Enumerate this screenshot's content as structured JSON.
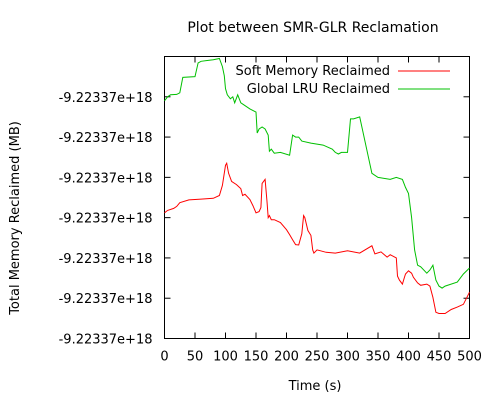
{
  "chart_data": {
    "type": "line",
    "title": "Plot between SMR-GLR Reclamation",
    "xlabel": "Time (s)",
    "ylabel": "Total Memory Reclaimed (MB)",
    "xlim": [
      0,
      500
    ],
    "ylim": [
      0,
      7
    ],
    "x_ticks": [
      "0",
      "50",
      "100",
      "150",
      "200",
      "250",
      "300",
      "350",
      "400",
      "450",
      "500"
    ],
    "y_ticks": [
      "-9.22337e+18",
      "-9.22337e+18",
      "-9.22337e+18",
      "-9.22337e+18",
      "-9.22337e+18",
      "-9.22337e+18",
      "-9.22337e+18"
    ],
    "y_tick_note": "All y tick labels print the same value; series y values below are read in tick-index units (0 = bottom tick, 6 = top tick).",
    "grid": false,
    "legend_position": "top-right",
    "series": [
      {
        "name": "Soft Memory Reclaimed",
        "color": "#ff0000",
        "x": [
          0,
          5,
          15,
          20,
          25,
          40,
          60,
          80,
          90,
          95,
          100,
          102,
          105,
          110,
          118,
          125,
          128,
          132,
          140,
          145,
          150,
          155,
          158,
          160,
          165,
          168,
          170,
          172,
          175,
          180,
          190,
          200,
          205,
          210,
          215,
          220,
          225,
          228,
          230,
          235,
          240,
          243,
          245,
          250,
          255,
          265,
          280,
          300,
          320,
          340,
          345,
          355,
          365,
          370,
          380,
          382,
          385,
          390,
          393,
          395,
          400,
          405,
          408,
          415,
          420,
          430,
          435,
          440,
          445,
          450,
          460,
          470,
          480,
          490,
          500
        ],
        "y": [
          3.12,
          3.18,
          3.23,
          3.28,
          3.37,
          3.44,
          3.46,
          3.48,
          3.55,
          3.8,
          4.3,
          4.35,
          4.1,
          3.9,
          3.82,
          3.72,
          3.55,
          3.58,
          3.45,
          3.3,
          3.12,
          3.15,
          3.25,
          3.85,
          3.95,
          3.4,
          3.0,
          3.05,
          2.95,
          2.95,
          2.88,
          2.7,
          2.58,
          2.45,
          2.33,
          2.32,
          2.6,
          3.05,
          3.0,
          2.68,
          2.56,
          2.2,
          2.12,
          2.2,
          2.18,
          2.14,
          2.12,
          2.18,
          2.12,
          2.3,
          2.1,
          2.15,
          2.02,
          2.08,
          2.0,
          1.55,
          1.45,
          1.35,
          1.5,
          1.6,
          1.68,
          1.62,
          1.52,
          1.38,
          1.32,
          1.35,
          1.3,
          1.02,
          0.65,
          0.62,
          0.62,
          0.72,
          0.78,
          0.85,
          1.15
        ]
      },
      {
        "name": "Global LRU Reclaimed",
        "color": "#00c000",
        "x": [
          0,
          5,
          10,
          20,
          25,
          30,
          50,
          55,
          60,
          70,
          80,
          90,
          95,
          98,
          100,
          103,
          108,
          112,
          115,
          120,
          125,
          130,
          140,
          150,
          152,
          155,
          160,
          165,
          170,
          172,
          175,
          180,
          190,
          205,
          210,
          215,
          220,
          225,
          240,
          260,
          275,
          280,
          285,
          290,
          300,
          305,
          310,
          320,
          340,
          350,
          370,
          380,
          390,
          395,
          400,
          405,
          410,
          415,
          420,
          430,
          435,
          440,
          445,
          450,
          455,
          460,
          480,
          490,
          500
        ],
        "y": [
          5.9,
          6.0,
          6.05,
          6.06,
          6.1,
          6.48,
          6.5,
          6.84,
          6.88,
          6.9,
          6.92,
          6.95,
          6.75,
          6.52,
          6.2,
          6.05,
          5.95,
          6.0,
          5.85,
          6.05,
          5.85,
          5.8,
          5.7,
          5.62,
          5.1,
          5.2,
          5.25,
          5.2,
          5.05,
          4.65,
          4.7,
          4.6,
          4.62,
          4.55,
          5.05,
          5.0,
          5.0,
          4.9,
          4.85,
          4.8,
          4.7,
          4.62,
          4.58,
          4.62,
          4.62,
          5.45,
          5.45,
          5.5,
          4.1,
          4.0,
          3.95,
          4.0,
          3.95,
          3.75,
          3.6,
          3.0,
          2.2,
          1.82,
          1.78,
          1.62,
          1.7,
          1.82,
          1.45,
          1.3,
          1.25,
          1.3,
          1.4,
          1.6,
          1.75
        ]
      }
    ]
  }
}
